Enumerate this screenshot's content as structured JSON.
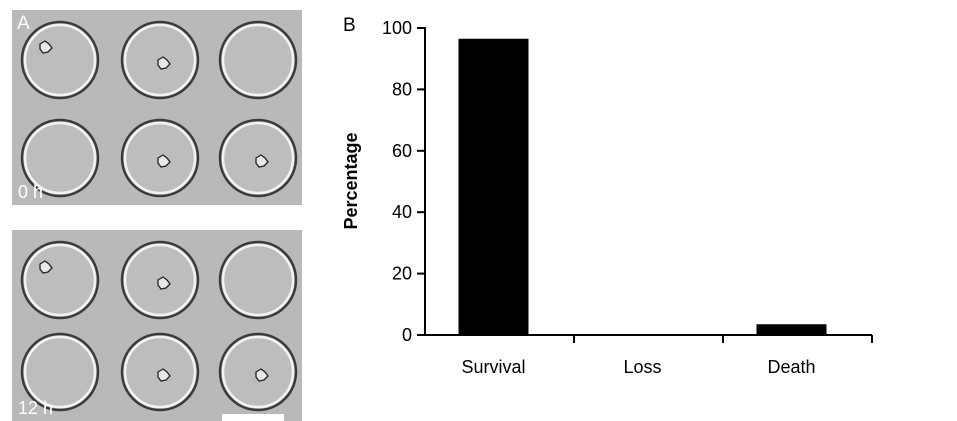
{
  "panel_a": {
    "letter": "A",
    "images": [
      {
        "time_label": "0 h",
        "wells_with_cells": [
          0,
          1,
          4,
          5
        ]
      },
      {
        "time_label": "12 h",
        "wells_with_cells": [
          0,
          1,
          4,
          5
        ]
      }
    ],
    "scale_bar_color": "#ffffff"
  },
  "panel_b": {
    "letter": "B"
  },
  "chart_data": {
    "type": "bar",
    "categories": [
      "Survival",
      "Loss",
      "Death"
    ],
    "values": [
      96.5,
      0,
      3.5
    ],
    "title": "",
    "xlabel": "",
    "ylabel": "Percentage",
    "ylim": [
      0,
      100
    ],
    "yticks": [
      0,
      20,
      40,
      60,
      80,
      100
    ],
    "bar_color": "#000000",
    "grid": false,
    "legend": "none"
  }
}
